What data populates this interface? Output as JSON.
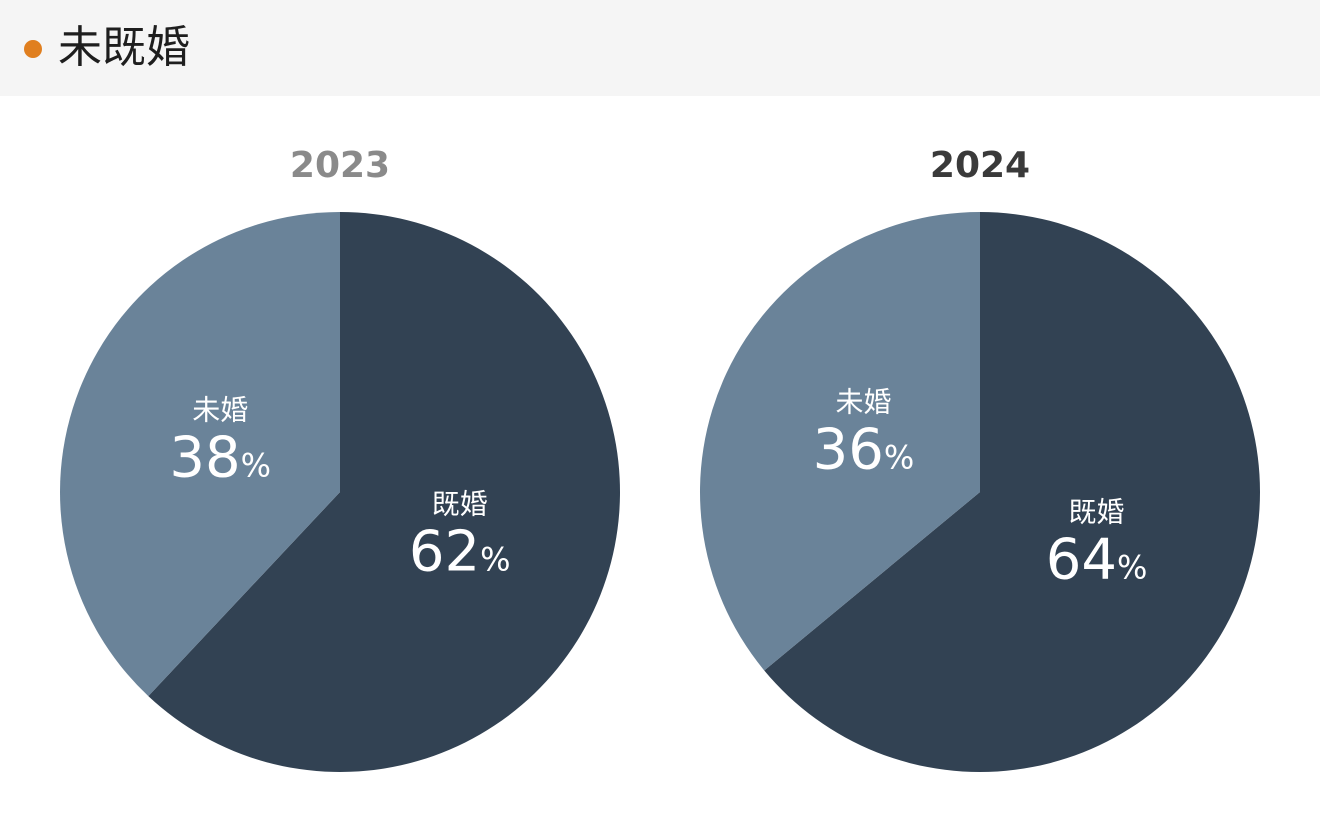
{
  "header": {
    "title": "未既婚",
    "dot_color": "#e07f1f"
  },
  "colors": {
    "married": "#324253",
    "unmarried": "#6a8399",
    "year_muted": "#8a8a8a",
    "year_strong": "#3a3a3a"
  },
  "chart_data": [
    {
      "type": "pie",
      "title": "2023",
      "title_color": "#8a8a8a",
      "slices": [
        {
          "label": "既婚",
          "value": 62,
          "display": "62",
          "unit": "%",
          "color": "#324253"
        },
        {
          "label": "未婚",
          "value": 38,
          "display": "38",
          "unit": "%",
          "color": "#6a8399"
        }
      ]
    },
    {
      "type": "pie",
      "title": "2024",
      "title_color": "#3a3a3a",
      "slices": [
        {
          "label": "既婚",
          "value": 64,
          "display": "64",
          "unit": "%",
          "color": "#324253"
        },
        {
          "label": "未婚",
          "value": 36,
          "display": "36",
          "unit": "%",
          "color": "#6a8399"
        }
      ]
    }
  ]
}
